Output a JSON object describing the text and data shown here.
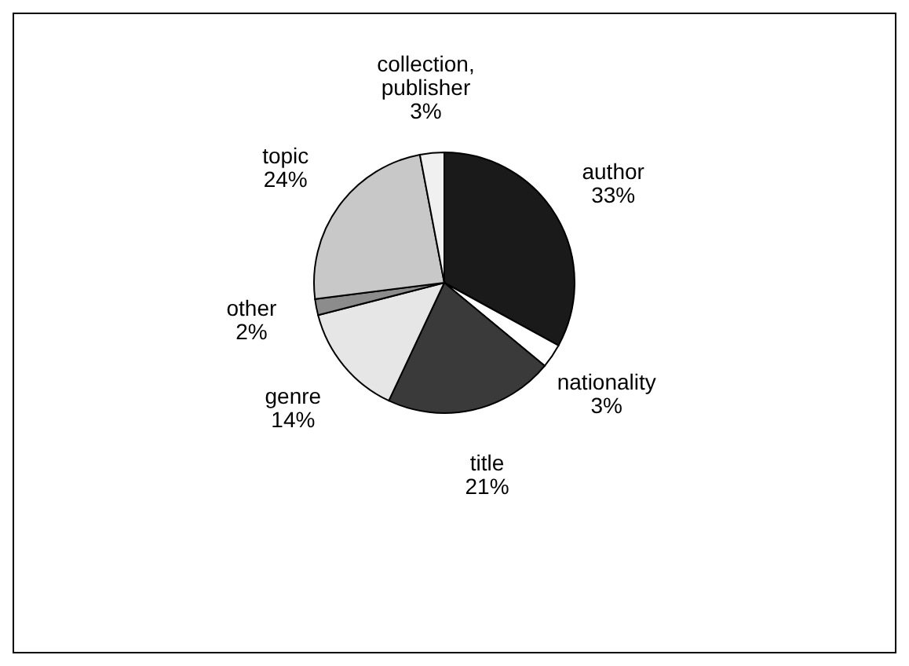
{
  "chart_data": {
    "type": "pie",
    "categories": [
      "author",
      "nationality",
      "title",
      "genre",
      "other",
      "topic",
      "collection, publisher"
    ],
    "values": [
      33,
      3,
      21,
      14,
      2,
      24,
      3
    ],
    "value_labels": [
      "33%",
      "3%",
      "21%",
      "14%",
      "2%",
      "24%",
      "3%"
    ],
    "colors": [
      "#1a1a1a",
      "#ffffff",
      "#3a3a3a",
      "#e6e6e6",
      "#8c8c8c",
      "#c8c8c8",
      "#f0f0f0"
    ]
  }
}
